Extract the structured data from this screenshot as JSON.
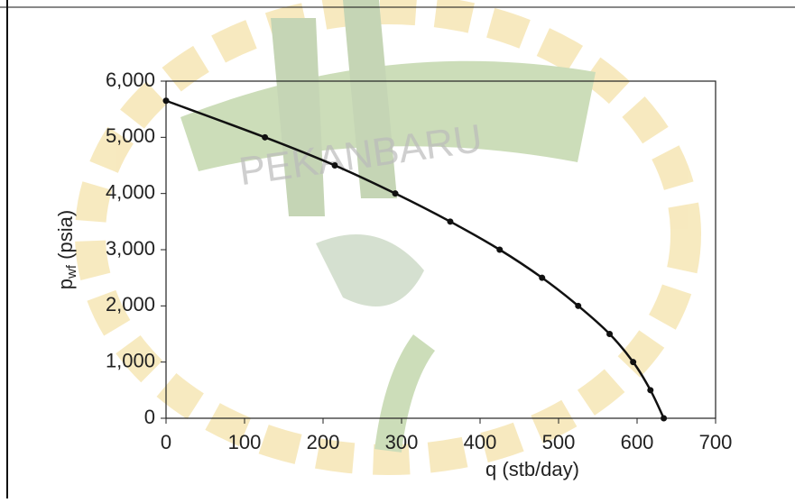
{
  "chart_data": {
    "type": "line",
    "watermark": "PEKANBARU",
    "x_label": "q (stb/day)",
    "y_label": {
      "main": "p",
      "sub": "wf",
      "rest": " (psia)"
    },
    "series": [
      {
        "color": "#111111",
        "x": [
          0,
          126,
          215,
          292,
          362,
          425,
          479,
          525,
          565,
          595,
          617,
          634
        ],
        "values": [
          5651,
          5000,
          4500,
          4000,
          3500,
          3000,
          2500,
          2000,
          1500,
          1000,
          500,
          0
        ]
      }
    ],
    "xlim": [
      0,
      700
    ],
    "xticks": [
      0,
      100,
      200,
      300,
      400,
      500,
      600,
      700
    ],
    "ylim": [
      0,
      6000
    ],
    "yticks": [
      0,
      {
        "value": 1000,
        "label": "1,000"
      },
      {
        "value": 2000,
        "label": "2,000"
      },
      {
        "value": 3000,
        "label": "3,000"
      },
      {
        "value": 4000,
        "label": "4,000"
      },
      {
        "value": 5000,
        "label": "5,000"
      },
      {
        "value": 6000,
        "label": "6,000"
      }
    ],
    "grid": false
  }
}
